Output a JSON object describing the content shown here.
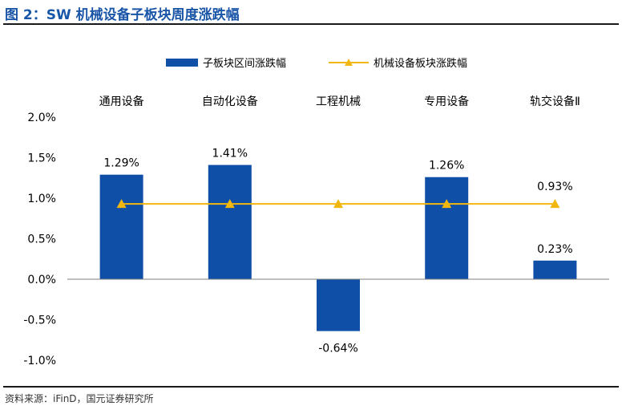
{
  "figure_title": "图 2：SW 机械设备子板块周度涨跌幅",
  "source": "资料来源：iFinD，国元证券研究所",
  "colors": {
    "bar": "#0f4fa8",
    "line": "#f2b70f",
    "title": "#1a56a8"
  },
  "chart_data": {
    "type": "bar",
    "title": "",
    "xlabel": "",
    "ylabel": "",
    "categories": [
      "通用设备",
      "自动化设备",
      "工程机械",
      "专用设备",
      "轨交设备Ⅱ"
    ],
    "series": [
      {
        "name": "子板块区间涨跌幅",
        "type": "bar",
        "values": [
          1.29,
          1.41,
          -0.64,
          1.26,
          0.23
        ],
        "labels": [
          "1.29%",
          "1.41%",
          "-0.64%",
          "1.26%",
          "0.23%"
        ]
      },
      {
        "name": "机械设备板块涨跌幅",
        "type": "line",
        "values": [
          0.93,
          0.93,
          0.93,
          0.93,
          0.93
        ],
        "labels": [
          "",
          "",
          "",
          "",
          "0.93%"
        ]
      }
    ],
    "ylim": [
      -1.0,
      2.0
    ],
    "yticks": [
      "-1.0%",
      "-0.5%",
      "0.0%",
      "0.5%",
      "1.0%",
      "1.5%",
      "2.0%"
    ],
    "legend": "top",
    "grid": false
  }
}
